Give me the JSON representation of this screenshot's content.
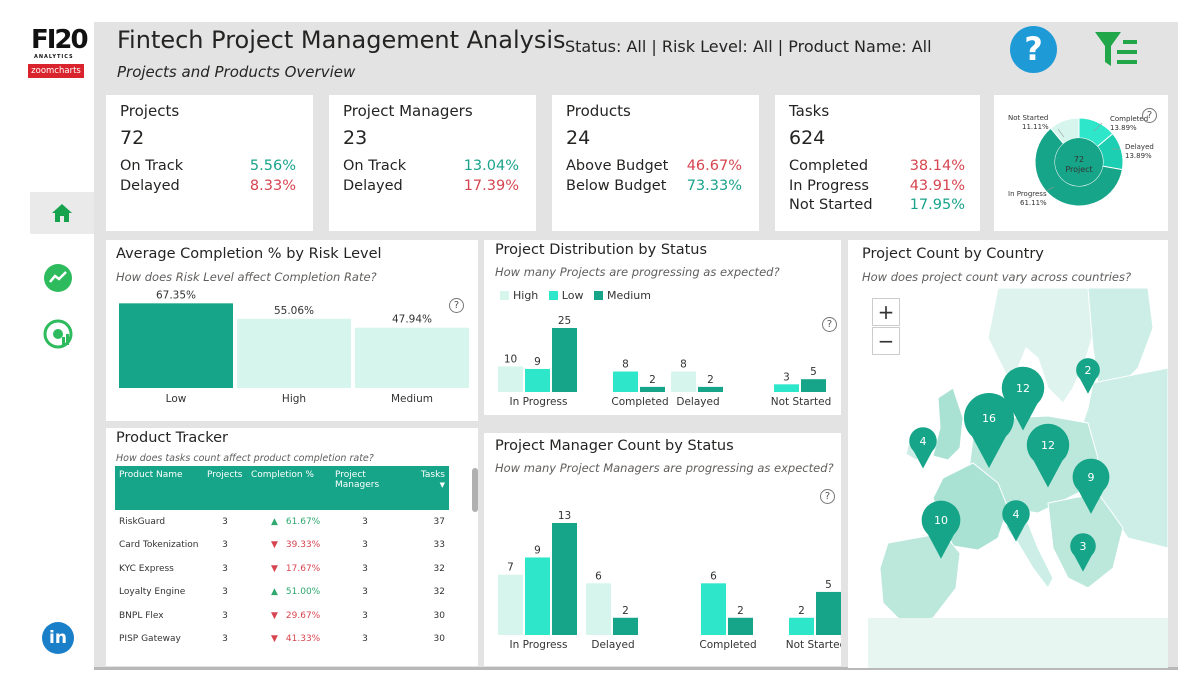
{
  "header": {
    "logo_top": "FI20",
    "logo_sub": "ANALYTICS",
    "logo_brand": "zoomcharts",
    "title": "Fintech Project Management Analysis",
    "subtitle": "Projects and Products Overview",
    "filters": "Status: All | Risk Level: All | Product Name: All",
    "help_icon": "question-icon",
    "filter_icon": "filter-icon"
  },
  "sidebar": {
    "items": [
      {
        "name": "home",
        "icon": "home-icon"
      },
      {
        "name": "trend",
        "icon": "trend-chart-icon"
      },
      {
        "name": "gauge",
        "icon": "gauge-icon"
      },
      {
        "name": "linkedin",
        "icon": "linkedin-icon",
        "label": "in"
      }
    ]
  },
  "colors": {
    "accent": "#17a589",
    "medium": "#17a589",
    "low": "#2ee6c9",
    "high": "#d6f5ec",
    "positive": "#1aa38b",
    "negative": "#d64550"
  },
  "kpis": [
    {
      "label": "Projects",
      "value": "72",
      "rows": [
        {
          "label": "On Track",
          "pct": "5.56%",
          "tone": "green"
        },
        {
          "label": "Delayed",
          "pct": "8.33%",
          "tone": "red"
        }
      ]
    },
    {
      "label": "Project Managers",
      "value": "23",
      "rows": [
        {
          "label": "On Track",
          "pct": "13.04%",
          "tone": "green"
        },
        {
          "label": "Delayed",
          "pct": "17.39%",
          "tone": "red"
        }
      ]
    },
    {
      "label": "Products",
      "value": "24",
      "rows": [
        {
          "label": "Above Budget",
          "pct": "46.67%",
          "tone": "red"
        },
        {
          "label": "Below Budget",
          "pct": "73.33%",
          "tone": "green"
        }
      ]
    },
    {
      "label": "Tasks",
      "value": "624",
      "rows": [
        {
          "label": "Completed",
          "pct": "38.14%",
          "tone": "red"
        },
        {
          "label": "In Progress",
          "pct": "43.91%",
          "tone": "red"
        },
        {
          "label": "Not Started",
          "pct": "17.95%",
          "tone": "green"
        }
      ]
    }
  ],
  "donut": {
    "center_value": "72",
    "center_label": "Project",
    "slices": [
      {
        "label": "Completed",
        "pct": "13.89%",
        "value": 13.89,
        "color": "#2ee6c9"
      },
      {
        "label": "Delayed",
        "pct": "13.89%",
        "value": 13.89,
        "color": "#1ccfb2"
      },
      {
        "label": "In Progress",
        "pct": "61.11%",
        "value": 61.11,
        "color": "#17a589"
      },
      {
        "label": "Not Started",
        "pct": "11.11%",
        "value": 11.11,
        "color": "#d6f5ec"
      }
    ]
  },
  "completion_chart": {
    "title": "Average Completion % by Risk Level",
    "subtitle": "How does Risk Level affect Completion Rate?"
  },
  "distribution_chart": {
    "title": "Project Distribution by Status",
    "subtitle": "How many Projects are progressing as expected?",
    "legend": [
      "High",
      "Low",
      "Medium"
    ]
  },
  "manager_chart": {
    "title": "Project Manager Count by Status",
    "subtitle": "How many Project Managers are progressing as expected?"
  },
  "country_chart": {
    "title": "Project Count by Country",
    "subtitle": "How does project count vary across countries?",
    "zoom_in": "+",
    "zoom_out": "−",
    "pins": [
      {
        "label": "12",
        "value": 12
      },
      {
        "label": "2",
        "value": 2
      },
      {
        "label": "16",
        "value": 16
      },
      {
        "label": "4",
        "value": 4
      },
      {
        "label": "12",
        "value": 12
      },
      {
        "label": "9",
        "value": 9
      },
      {
        "label": "10",
        "value": 10
      },
      {
        "label": "4",
        "value": 4
      },
      {
        "label": "3",
        "value": 3
      }
    ]
  },
  "tracker": {
    "title": "Product Tracker",
    "subtitle": "How does tasks count affect product completion rate?",
    "columns": [
      "Product Name",
      "Projects",
      "Completion %",
      "Project Managers",
      "Tasks"
    ],
    "rows": [
      {
        "name": "RiskGuard",
        "projects": "3",
        "trend": "up",
        "completion": "61.67%",
        "managers": "3",
        "tasks": "37"
      },
      {
        "name": "Card Tokenization",
        "projects": "3",
        "trend": "down",
        "completion": "39.33%",
        "managers": "3",
        "tasks": "33"
      },
      {
        "name": "KYC Express",
        "projects": "3",
        "trend": "down",
        "completion": "17.67%",
        "managers": "3",
        "tasks": "32"
      },
      {
        "name": "Loyalty Engine",
        "projects": "3",
        "trend": "up",
        "completion": "51.00%",
        "managers": "3",
        "tasks": "32"
      },
      {
        "name": "BNPL Flex",
        "projects": "3",
        "trend": "down",
        "completion": "29.67%",
        "managers": "3",
        "tasks": "30"
      },
      {
        "name": "PISP Gateway",
        "projects": "3",
        "trend": "down",
        "completion": "41.33%",
        "managers": "3",
        "tasks": "30"
      }
    ]
  },
  "chart_data": [
    {
      "type": "bar",
      "title": "Average Completion % by Risk Level",
      "categories": [
        "Low",
        "High",
        "Medium"
      ],
      "values": [
        67.35,
        55.06,
        47.94
      ],
      "labels": [
        "67.35%",
        "55.06%",
        "47.94%"
      ],
      "ylim": [
        0,
        70
      ]
    },
    {
      "type": "bar",
      "title": "Project Distribution by Status",
      "categories": [
        "In Progress",
        "Completed",
        "Delayed",
        "Not Started"
      ],
      "series": [
        {
          "name": "High",
          "values": [
            10,
            null,
            8,
            null
          ]
        },
        {
          "name": "Low",
          "values": [
            9,
            8,
            null,
            3
          ]
        },
        {
          "name": "Medium",
          "values": [
            25,
            2,
            2,
            5
          ]
        }
      ],
      "ylim": [
        0,
        25
      ]
    },
    {
      "type": "bar",
      "title": "Project Manager Count by Status",
      "categories": [
        "In Progress",
        "Delayed",
        "Completed",
        "Not Started"
      ],
      "series": [
        {
          "name": "High",
          "values": [
            7,
            6,
            null,
            null
          ]
        },
        {
          "name": "Low",
          "values": [
            9,
            null,
            6,
            2
          ]
        },
        {
          "name": "Medium",
          "values": [
            13,
            2,
            2,
            5
          ]
        }
      ],
      "ylim": [
        0,
        13
      ]
    }
  ]
}
